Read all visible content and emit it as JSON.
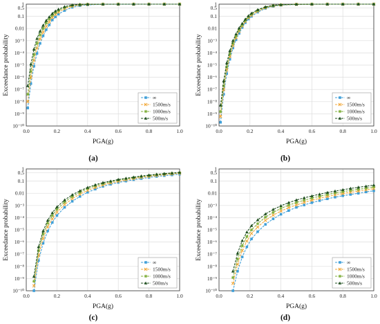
{
  "chart_data": [
    {
      "type": "line",
      "caption": "(a)",
      "xlabel": "PGA(g)",
      "ylabel": "Exceedance probability",
      "xlim": [
        0,
        1.0
      ],
      "ylim": [
        1e-10,
        1
      ],
      "yscale": "log",
      "grid": true,
      "legend_position": "bottom-right",
      "x_tick_labels": [
        "0.0",
        "0.2",
        "0.4",
        "0.6",
        "0.8",
        "1.0"
      ],
      "y_tick_labels": [
        "10⁻¹⁰",
        "10⁻⁹",
        "10⁻⁸",
        "10⁻⁷",
        "10⁻⁶",
        "10⁻⁵",
        "10⁻⁴",
        "10⁻³",
        "0.01",
        "0.1",
        "0.5",
        "1"
      ],
      "x": [
        0.01,
        0.03,
        0.05,
        0.07,
        0.09,
        0.11,
        0.13,
        0.15,
        0.17,
        0.19,
        0.21,
        0.25,
        0.3,
        0.35,
        0.4,
        0.5,
        0.6,
        0.7,
        0.8,
        0.9,
        1.0
      ],
      "series": [
        {
          "name": "∞",
          "color": "#3f9fd8",
          "marker": "square",
          "values": [
            3e-09,
            3e-07,
            8e-06,
            9e-05,
            0.0006,
            0.0025,
            0.008,
            0.02,
            0.05,
            0.09,
            0.15,
            0.3,
            0.55,
            0.75,
            0.88,
            0.97,
            0.99,
            1,
            1,
            1,
            1
          ]
        },
        {
          "name": "1500m/s",
          "color": "#f2a93b",
          "marker": "cross",
          "values": [
            1e-08,
            1e-06,
            2.5e-05,
            0.00025,
            0.0014,
            0.005,
            0.015,
            0.035,
            0.08,
            0.14,
            0.22,
            0.42,
            0.68,
            0.85,
            0.94,
            0.99,
            1,
            1,
            1,
            1,
            1
          ]
        },
        {
          "name": "1000m/s",
          "color": "#7fae3a",
          "marker": "star",
          "values": [
            4e-08,
            3e-06,
            7e-05,
            0.0006,
            0.003,
            0.01,
            0.028,
            0.06,
            0.12,
            0.2,
            0.3,
            0.52,
            0.78,
            0.91,
            0.97,
            1,
            1,
            1,
            1,
            1,
            1
          ]
        },
        {
          "name": "500m/s",
          "color": "#1f4f1f",
          "marker": "triangle",
          "values": [
            2e-07,
            1.2e-05,
            0.0002,
            0.0015,
            0.006,
            0.018,
            0.045,
            0.09,
            0.17,
            0.27,
            0.38,
            0.62,
            0.85,
            0.95,
            0.99,
            1,
            1,
            1,
            1,
            1,
            1
          ]
        }
      ]
    },
    {
      "type": "line",
      "caption": "(b)",
      "xlabel": "PGA(g)",
      "ylabel": "Exceedance probability",
      "xlim": [
        0,
        1.0
      ],
      "ylim": [
        1e-10,
        1
      ],
      "yscale": "log",
      "grid": true,
      "legend_position": "bottom-right",
      "x_tick_labels": [
        "0.0",
        "0.2",
        "0.4",
        "0.6",
        "0.8",
        "1.0"
      ],
      "y_tick_labels": [
        "10⁻¹⁰",
        "10⁻⁹",
        "10⁻⁸",
        "10⁻⁷",
        "10⁻⁶",
        "10⁻⁵",
        "10⁻⁴",
        "10⁻³",
        "0.01",
        "0.1",
        "0.5",
        "1"
      ],
      "x": [
        0.01,
        0.03,
        0.05,
        0.07,
        0.09,
        0.11,
        0.13,
        0.15,
        0.17,
        0.19,
        0.21,
        0.25,
        0.3,
        0.35,
        0.4,
        0.5,
        0.6,
        0.7,
        0.8,
        0.9,
        1.0
      ],
      "series": [
        {
          "name": "∞",
          "color": "#3f9fd8",
          "marker": "square",
          "values": [
            2e-10,
            4e-08,
            2e-06,
            3e-05,
            0.00025,
            0.0012,
            0.004,
            0.012,
            0.03,
            0.06,
            0.1,
            0.22,
            0.45,
            0.66,
            0.82,
            0.95,
            0.99,
            1,
            1,
            1,
            1
          ]
        },
        {
          "name": "1500m/s",
          "color": "#f2a93b",
          "marker": "cross",
          "values": [
            6e-10,
            1e-07,
            4e-06,
            5e-05,
            0.0004,
            0.0018,
            0.006,
            0.016,
            0.038,
            0.075,
            0.12,
            0.26,
            0.5,
            0.71,
            0.85,
            0.96,
            0.99,
            1,
            1,
            1,
            1
          ]
        },
        {
          "name": "1000m/s",
          "color": "#7fae3a",
          "marker": "star",
          "values": [
            1.5e-09,
            2e-07,
            7e-06,
            8e-05,
            0.0006,
            0.0025,
            0.008,
            0.02,
            0.046,
            0.09,
            0.15,
            0.3,
            0.55,
            0.75,
            0.88,
            0.97,
            1,
            1,
            1,
            1,
            1
          ]
        },
        {
          "name": "500m/s",
          "color": "#1f4f1f",
          "marker": "triangle",
          "values": [
            5e-09,
            5e-07,
            1.5e-05,
            0.00015,
            0.001,
            0.0035,
            0.011,
            0.026,
            0.058,
            0.11,
            0.18,
            0.35,
            0.6,
            0.8,
            0.91,
            0.98,
            1,
            1,
            1,
            1,
            1
          ]
        }
      ]
    },
    {
      "type": "line",
      "caption": "(c)",
      "xlabel": "PGA(g)",
      "ylabel": "Exceedance probability",
      "xlim": [
        0,
        1.0
      ],
      "ylim": [
        1e-10,
        1
      ],
      "yscale": "log",
      "grid": true,
      "legend_position": "bottom-right",
      "x_tick_labels": [
        "0.0",
        "0.2",
        "0.4",
        "0.6",
        "0.8",
        "1.0"
      ],
      "y_tick_labels": [
        "10⁻¹⁰",
        "10⁻⁹",
        "10⁻⁸",
        "10⁻⁷",
        "10⁻⁶",
        "10⁻⁵",
        "10⁻⁴",
        "10⁻³",
        "0.01",
        "0.1",
        "0.5",
        "1"
      ],
      "x": [
        0.05,
        0.08,
        0.11,
        0.14,
        0.17,
        0.2,
        0.25,
        0.3,
        0.35,
        0.4,
        0.45,
        0.5,
        0.55,
        0.6,
        0.65,
        0.7,
        0.75,
        0.8,
        0.85,
        0.9,
        0.95,
        1.0
      ],
      "series": [
        {
          "name": "∞",
          "color": "#3f9fd8",
          "marker": "square",
          "values": [
            1e-10,
            3e-08,
            8e-07,
            8e-06,
            4e-05,
            0.00015,
            0.0007,
            0.0022,
            0.0055,
            0.012,
            0.022,
            0.037,
            0.055,
            0.078,
            0.1,
            0.13,
            0.16,
            0.2,
            0.24,
            0.28,
            0.32,
            0.37
          ]
        },
        {
          "name": "1500m/s",
          "color": "#f2a93b",
          "marker": "cross",
          "values": [
            2.5e-10,
            8e-08,
            2e-06,
            1.8e-05,
            8e-05,
            0.00028,
            0.0012,
            0.0036,
            0.0085,
            0.017,
            0.03,
            0.048,
            0.07,
            0.095,
            0.125,
            0.16,
            0.2,
            0.24,
            0.29,
            0.34,
            0.39,
            0.44
          ]
        },
        {
          "name": "1000m/s",
          "color": "#7fae3a",
          "marker": "star",
          "values": [
            6e-10,
            2e-07,
            4.5e-06,
            3.5e-05,
            0.00015,
            0.00048,
            0.0019,
            0.0055,
            0.012,
            0.024,
            0.04,
            0.062,
            0.088,
            0.12,
            0.15,
            0.19,
            0.23,
            0.28,
            0.33,
            0.38,
            0.43,
            0.48
          ]
        },
        {
          "name": "500m/s",
          "color": "#1f4f1f",
          "marker": "triangle",
          "values": [
            1.5e-09,
            4e-07,
            8e-06,
            6e-05,
            0.00025,
            0.00075,
            0.0028,
            0.0075,
            0.016,
            0.03,
            0.05,
            0.075,
            0.1,
            0.135,
            0.17,
            0.21,
            0.26,
            0.31,
            0.36,
            0.41,
            0.46,
            0.52
          ]
        }
      ]
    },
    {
      "type": "line",
      "caption": "(d)",
      "xlabel": "PGA(g)",
      "ylabel": "Exceedance probability",
      "xlim": [
        0,
        1.0
      ],
      "ylim": [
        1e-10,
        1
      ],
      "yscale": "log",
      "grid": true,
      "legend_position": "bottom-right",
      "x_tick_labels": [
        "0.0",
        "0.2",
        "0.4",
        "0.6",
        "0.8",
        "1.0"
      ],
      "y_tick_labels": [
        "10⁻¹⁰",
        "10⁻⁹",
        "10⁻⁸",
        "10⁻⁷",
        "10⁻⁶",
        "10⁻⁵",
        "10⁻⁴",
        "10⁻³",
        "0.01",
        "0.1",
        "0.5",
        "1"
      ],
      "x": [
        0.09,
        0.12,
        0.15,
        0.18,
        0.21,
        0.25,
        0.3,
        0.35,
        0.4,
        0.45,
        0.5,
        0.55,
        0.6,
        0.65,
        0.7,
        0.75,
        0.8,
        0.85,
        0.9,
        0.95,
        1.0
      ],
      "series": [
        {
          "name": "∞",
          "color": "#3f9fd8",
          "marker": "square",
          "values": [
            1e-10,
            4e-09,
            6e-08,
            4e-07,
            1.8e-06,
            7e-06,
            2.8e-05,
            8e-05,
            0.00019,
            0.00038,
            0.0007,
            0.0011,
            0.0017,
            0.0025,
            0.0035,
            0.0048,
            0.0063,
            0.008,
            0.01,
            0.013,
            0.016
          ]
        },
        {
          "name": "1500m/s",
          "color": "#f2a93b",
          "marker": "cross",
          "values": [
            4e-10,
            1.5e-08,
            2e-07,
            1.2e-06,
            5e-06,
            1.7e-05,
            6e-05,
            0.00016,
            0.00035,
            0.00066,
            0.0011,
            0.0018,
            0.0027,
            0.0039,
            0.0054,
            0.0073,
            0.0095,
            0.012,
            0.015,
            0.019,
            0.024
          ]
        },
        {
          "name": "1000m/s",
          "color": "#7fae3a",
          "marker": "star",
          "values": [
            1.2e-09,
            4e-08,
            5e-07,
            2.8e-06,
            1e-05,
            3.2e-05,
            0.00011,
            0.00027,
            0.00058,
            0.00105,
            0.00175,
            0.0027,
            0.004,
            0.0057,
            0.0078,
            0.0105,
            0.0135,
            0.017,
            0.021,
            0.026,
            0.033
          ]
        },
        {
          "name": "500m/s",
          "color": "#1f4f1f",
          "marker": "triangle",
          "values": [
            4e-09,
            1.2e-07,
            1.3e-06,
            6.5e-06,
            2.2e-05,
            6.5e-05,
            0.0002,
            0.00047,
            0.00095,
            0.0017,
            0.0028,
            0.0042,
            0.006,
            0.0084,
            0.0115,
            0.0152,
            0.0195,
            0.025,
            0.031,
            0.038,
            0.047
          ]
        }
      ]
    }
  ]
}
